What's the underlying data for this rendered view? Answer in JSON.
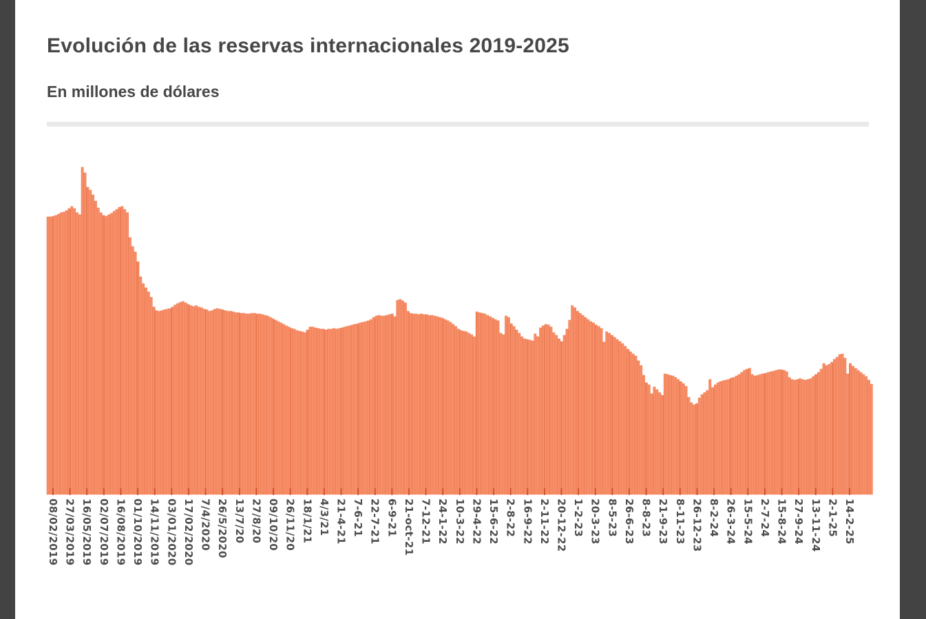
{
  "page": {
    "title": "Evolución de las reservas internacionales 2019-2025",
    "subtitle": "En millones de dólares",
    "frame_color": "#434343",
    "background_color": "#ffffff",
    "divider_color": "#e9e9e9"
  },
  "chart_data": {
    "type": "bar",
    "title": "Evolución de las reservas internacionales 2019-2025",
    "subtitle": "En millones de dólares",
    "unit": "millones de dólares",
    "legend": "none",
    "grid": "vertical tick gridlines over bars only",
    "y_axis": {
      "min": 0,
      "max": 80000,
      "visible": false
    },
    "bar_color": "#f78e68",
    "bar_edge_color": "#ee7c52",
    "gridline_color": "#e0663a",
    "tick_color": "#c94f2a",
    "label_color": "#4d4d4d",
    "x_tick_labels": [
      "08/02/2019",
      "27/03/2019",
      "16/05/2019",
      "02/07/2019",
      "16/08/2019",
      "01/10/2019",
      "14/11/2019",
      "03/01/2020",
      "17/02/2020",
      "7/4/2020",
      "26/5/2020",
      "13/7/20",
      "27/8/20",
      "09/10/20",
      "26/11/20",
      "18/1/21",
      "4/3/21",
      "21-4-21",
      "7-6-21",
      "22-7-21",
      "6-9-21",
      "21-oct-21",
      "7-12-21",
      "24-1-22",
      "10-3-22",
      "29-4-22",
      "15-6-22",
      "2-8-22",
      "16-9-22",
      "2-11-22",
      "20-12-22",
      "1-2-23",
      "20-3-23",
      "8-5-23",
      "26-6-23",
      "8-8-23",
      "21-9-23",
      "8-11-23",
      "26-12-23",
      "8-2-24",
      "26-3-24",
      "15-5-24",
      "2-7-24",
      "15-8-24",
      "27-9-24",
      "13-11-24",
      "2-1-25",
      "14-2-25"
    ],
    "values": [
      66900,
      66900,
      67050,
      67250,
      67550,
      67900,
      68050,
      68400,
      68900,
      69400,
      68900,
      67900,
      67400,
      78850,
      77500,
      74050,
      73350,
      72200,
      70700,
      69050,
      67900,
      67250,
      67050,
      67400,
      67750,
      68250,
      68700,
      69200,
      69400,
      68700,
      67900,
      61900,
      59750,
      58450,
      56100,
      52450,
      50800,
      49800,
      48800,
      47500,
      45150,
      44300,
      44150,
      44300,
      44500,
      44650,
      44800,
      45150,
      45650,
      46000,
      46300,
      46500,
      46150,
      45800,
      45500,
      45300,
      45500,
      45150,
      45000,
      44650,
      44500,
      44150,
      44300,
      44650,
      44800,
      44650,
      44500,
      44300,
      44150,
      44150,
      44000,
      43800,
      43800,
      43650,
      43650,
      43500,
      43500,
      43650,
      43650,
      43500,
      43500,
      43350,
      43150,
      43000,
      42650,
      42350,
      42000,
      41650,
      41350,
      41000,
      40650,
      40350,
      40000,
      39850,
      39500,
      39350,
      39200,
      39000,
      39650,
      40350,
      40350,
      40150,
      40000,
      39850,
      39850,
      39650,
      39850,
      39850,
      40000,
      39850,
      40000,
      40150,
      40350,
      40500,
      40650,
      40850,
      41000,
      41150,
      41350,
      41500,
      41650,
      41850,
      42150,
      42650,
      43000,
      43150,
      43000,
      43000,
      43150,
      43350,
      43500,
      42850,
      46800,
      47000,
      46650,
      46150,
      44150,
      43650,
      43500,
      43500,
      43350,
      43500,
      43350,
      43350,
      43150,
      43150,
      43000,
      42850,
      42650,
      42500,
      42150,
      41850,
      41500,
      41000,
      40500,
      39850,
      39500,
      39350,
      39200,
      38850,
      38500,
      38000,
      44000,
      43800,
      43650,
      43500,
      43150,
      42850,
      42500,
      42150,
      41850,
      38850,
      38500,
      43000,
      42650,
      41150,
      40500,
      39650,
      38850,
      38000,
      37500,
      37350,
      37200,
      37000,
      38700,
      38000,
      40150,
      40650,
      41000,
      40850,
      40350,
      39000,
      38350,
      37500,
      36850,
      38350,
      39850,
      42000,
      45500,
      45000,
      44150,
      43650,
      43150,
      42650,
      42150,
      41650,
      41350,
      40850,
      40500,
      40000,
      36700,
      39200,
      38850,
      38350,
      37850,
      37350,
      36850,
      36350,
      35700,
      35000,
      34350,
      33850,
      33350,
      32200,
      31050,
      28700,
      26900,
      26400,
      24250,
      25900,
      25250,
      24550,
      23900,
      29050,
      28900,
      28700,
      28550,
      28200,
      27700,
      27200,
      26700,
      26050,
      23400,
      22100,
      21600,
      21900,
      23250,
      24050,
      24550,
      25050,
      27700,
      25750,
      26400,
      26900,
      27200,
      27400,
      27550,
      27700,
      28050,
      28200,
      28550,
      28900,
      29400,
      29900,
      30200,
      30400,
      28900,
      28550,
      28700,
      28900,
      29050,
      29200,
      29400,
      29550,
      29700,
      29900,
      30050,
      30050,
      29900,
      29550,
      28200,
      27700,
      27550,
      27700,
      27900,
      27700,
      27550,
      27700,
      27900,
      28400,
      28900,
      29400,
      30200,
      31550,
      31050,
      31350,
      31850,
      32550,
      33050,
      33700,
      33850,
      32850,
      29050,
      31550,
      30900,
      30400,
      29900,
      29400,
      28900,
      28400,
      27550,
      26550
    ]
  }
}
